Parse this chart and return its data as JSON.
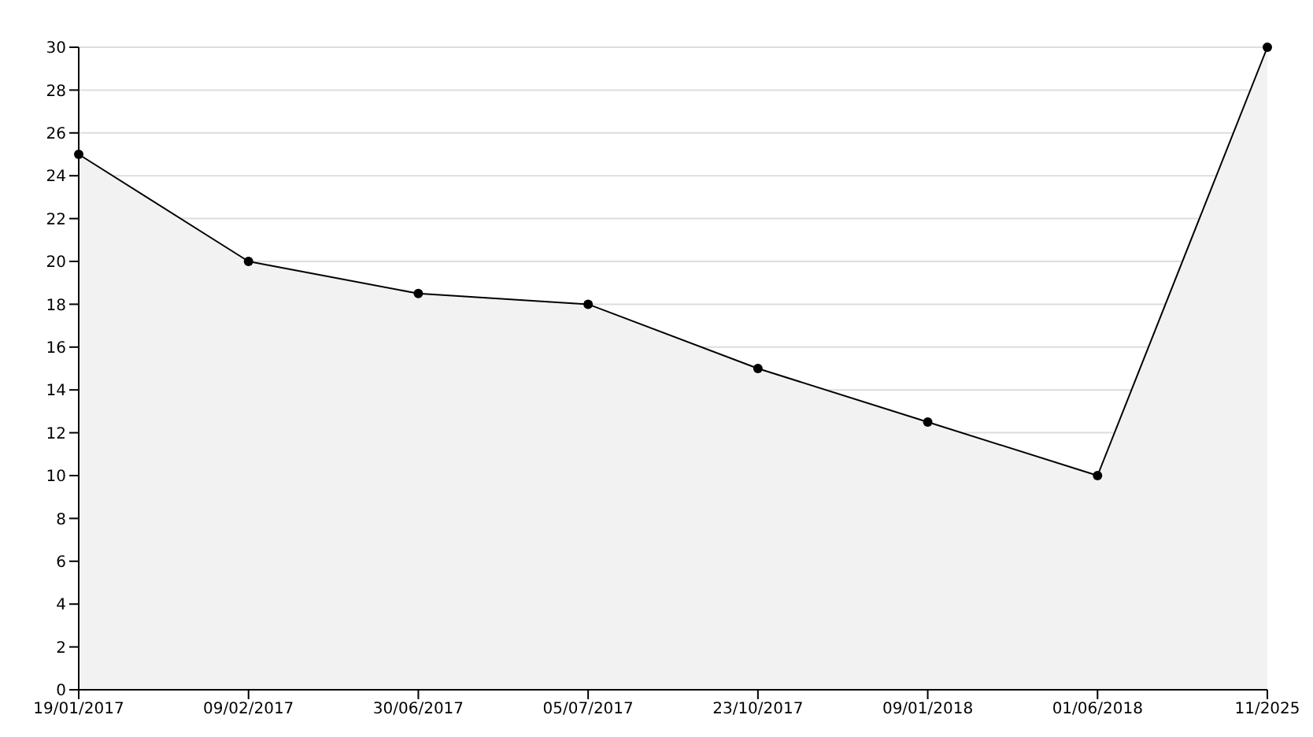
{
  "chart_data": {
    "type": "area",
    "categories": [
      "19/01/2017",
      "09/02/2017",
      "30/06/2017",
      "05/07/2017",
      "23/10/2017",
      "09/01/2018",
      "01/06/2018",
      "11/2025"
    ],
    "series": [
      {
        "color": "#000000",
        "values": [
          25,
          20,
          18.5,
          18,
          15,
          12.5,
          10,
          30
        ]
      }
    ],
    "ylim": [
      0,
      30
    ],
    "yticks": [
      0,
      2,
      4,
      6,
      8,
      10,
      12,
      14,
      16,
      18,
      20,
      22,
      24,
      26,
      28,
      30
    ],
    "grid": "y",
    "marker": "circle",
    "legend": false
  }
}
